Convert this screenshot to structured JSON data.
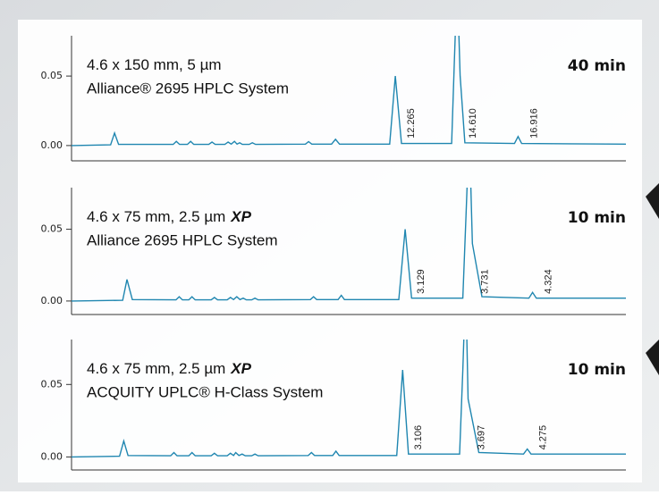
{
  "chart_data": [
    {
      "type": "line",
      "title": "4.6 x 150 mm, 5 µm",
      "system": "Alliance® 2695 HPLC System",
      "run_time": "40 min",
      "xlim": [
        0,
        21
      ],
      "ylim": [
        -0.011,
        0.079
      ],
      "yticks": [
        {
          "value": 0,
          "label": "0.00"
        },
        {
          "value": 0.05,
          "label": "0.05"
        }
      ],
      "color": "#1f86b0",
      "x": [
        0,
        1.48,
        1.63,
        1.78,
        3.85,
        3.97,
        4.09,
        4.39,
        4.51,
        4.63,
        5.2,
        5.32,
        5.44,
        5.81,
        5.93,
        6.05,
        6.17,
        6.27,
        6.37,
        6.47,
        6.73,
        6.85,
        6.97,
        8.86,
        8.98,
        9.1,
        9.85,
        10.0,
        10.15,
        12.05,
        12.265,
        12.5,
        14.4,
        14.5,
        14.61,
        14.72,
        14.9,
        16.78,
        16.916,
        17.05,
        21
      ],
      "values": [
        0,
        0.0005,
        0.009,
        0.0008,
        0.0008,
        0.003,
        0.0008,
        0.0008,
        0.003,
        0.0008,
        0.0008,
        0.0025,
        0.0008,
        0.0008,
        0.0025,
        0.001,
        0.003,
        0.001,
        0.002,
        0.0008,
        0.0008,
        0.002,
        0.0008,
        0.001,
        0.0028,
        0.001,
        0.001,
        0.0045,
        0.001,
        0.001,
        0.05,
        0.0015,
        0.0015,
        0.06,
        0.12,
        0.05,
        0.002,
        0.0015,
        0.0065,
        0.0015,
        0.001
      ],
      "peak_labels": [
        "12.265",
        "14.610",
        "16.916"
      ]
    },
    {
      "type": "line",
      "title": "4.6 x 75 mm, 2.5 µm",
      "title_suffix": "XP",
      "system": "Alliance 2695 HPLC System",
      "run_time": "10 min",
      "xlim": [
        0,
        5.2
      ],
      "ylim": [
        -0.0094,
        0.079
      ],
      "yticks": [
        {
          "value": 0,
          "label": "0.00"
        },
        {
          "value": 0.05,
          "label": "0.05"
        }
      ],
      "color": "#1f86b0",
      "x": [
        0,
        0.48,
        0.52,
        0.57,
        0.98,
        1.01,
        1.04,
        1.1,
        1.13,
        1.16,
        1.31,
        1.34,
        1.37,
        1.46,
        1.49,
        1.52,
        1.55,
        1.58,
        1.61,
        1.64,
        1.69,
        1.72,
        1.75,
        2.24,
        2.27,
        2.3,
        2.5,
        2.53,
        2.56,
        3.07,
        3.129,
        3.19,
        3.67,
        3.7,
        3.731,
        3.76,
        3.85,
        4.29,
        4.324,
        4.36,
        5.2
      ],
      "values": [
        0,
        0.0005,
        0.015,
        0.001,
        0.0008,
        0.003,
        0.0008,
        0.0008,
        0.003,
        0.0008,
        0.0008,
        0.0025,
        0.0008,
        0.0008,
        0.0025,
        0.001,
        0.003,
        0.001,
        0.002,
        0.0008,
        0.0008,
        0.002,
        0.0008,
        0.001,
        0.003,
        0.001,
        0.001,
        0.004,
        0.001,
        0.001,
        0.05,
        0.002,
        0.002,
        0.06,
        0.12,
        0.04,
        0.003,
        0.002,
        0.006,
        0.002,
        0.002
      ],
      "peak_labels": [
        "3.129",
        "3.731",
        "4.324"
      ]
    },
    {
      "type": "line",
      "title": "4.6 x 75 mm, 2.5 µm",
      "title_suffix": "XP",
      "system": "ACQUITY UPLC® H-Class System",
      "run_time": "10 min",
      "xlim": [
        0,
        5.2
      ],
      "ylim": [
        -0.009,
        0.081
      ],
      "yticks": [
        {
          "value": 0,
          "label": "0.00"
        },
        {
          "value": 0.05,
          "label": "0.05"
        }
      ],
      "color": "#1f86b0",
      "x": [
        0,
        0.45,
        0.49,
        0.53,
        0.93,
        0.96,
        0.99,
        1.1,
        1.13,
        1.16,
        1.31,
        1.34,
        1.37,
        1.46,
        1.49,
        1.52,
        1.54,
        1.57,
        1.6,
        1.63,
        1.69,
        1.72,
        1.75,
        2.22,
        2.25,
        2.28,
        2.45,
        2.48,
        2.51,
        3.05,
        3.106,
        3.16,
        3.64,
        3.67,
        3.697,
        3.72,
        3.82,
        4.24,
        4.275,
        4.31,
        5.2
      ],
      "values": [
        0,
        0.0005,
        0.011,
        0.001,
        0.0008,
        0.003,
        0.0008,
        0.0008,
        0.003,
        0.0008,
        0.0008,
        0.0025,
        0.0008,
        0.0008,
        0.0025,
        0.001,
        0.003,
        0.001,
        0.002,
        0.0008,
        0.0008,
        0.002,
        0.0008,
        0.001,
        0.003,
        0.001,
        0.001,
        0.004,
        0.001,
        0.001,
        0.06,
        0.002,
        0.002,
        0.06,
        0.12,
        0.04,
        0.003,
        0.002,
        0.0055,
        0.002,
        0.002
      ],
      "peak_labels": [
        "3.106",
        "3.697",
        "4.275"
      ]
    }
  ]
}
